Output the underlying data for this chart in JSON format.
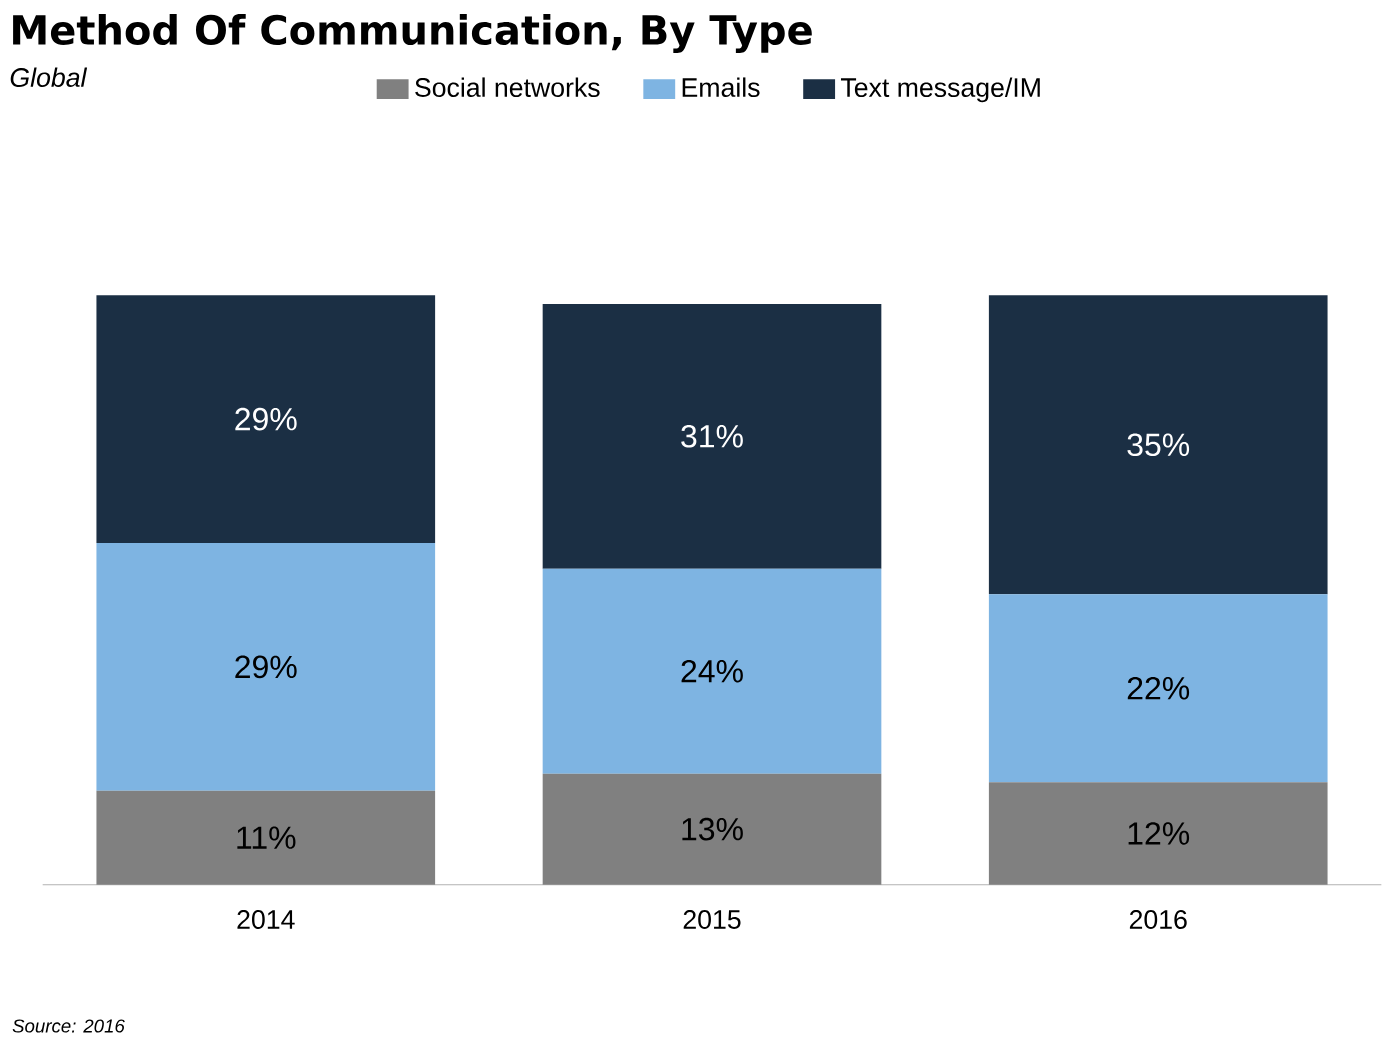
{
  "chart_data": {
    "type": "bar",
    "stacked": true,
    "title": "Method Of Communication, By Type",
    "subtitle": "Global",
    "categories": [
      "2014",
      "2015",
      "2016"
    ],
    "series": [
      {
        "name": "Social networks",
        "color": "#808080",
        "values": [
          11,
          13,
          12
        ],
        "value_labels": [
          "11%",
          "13%",
          "12%"
        ]
      },
      {
        "name": "Emails",
        "color": "#7eb4e2",
        "values": [
          29,
          24,
          22
        ],
        "value_labels": [
          "29%",
          "24%",
          "22%"
        ]
      },
      {
        "name": "Text message/IM",
        "color": "#1b2f44",
        "values": [
          29,
          31,
          35
        ],
        "value_labels": [
          "29%",
          "31%",
          "35%"
        ]
      }
    ],
    "legend": "top",
    "annotations": [
      "Source: 2016"
    ]
  }
}
